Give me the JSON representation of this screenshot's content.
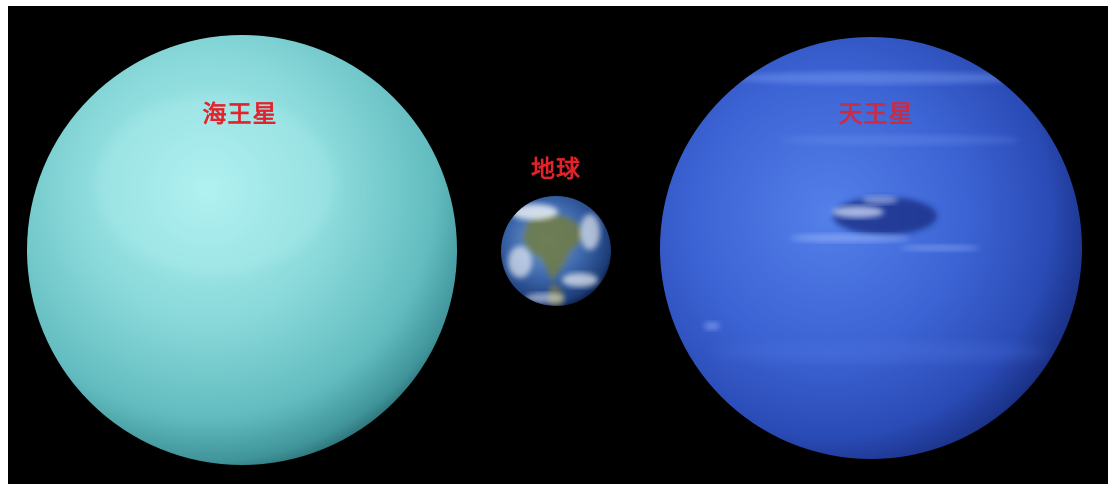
{
  "labels": {
    "left_planet": "海王星",
    "earth": "地球",
    "right_planet": "天王星"
  },
  "colors": {
    "frame": "#ffffff",
    "background": "#000000",
    "label": "#e3222b",
    "left_planet": "#86d6d8",
    "earth": "#3a64a8",
    "right_planet": "#3457c8"
  }
}
